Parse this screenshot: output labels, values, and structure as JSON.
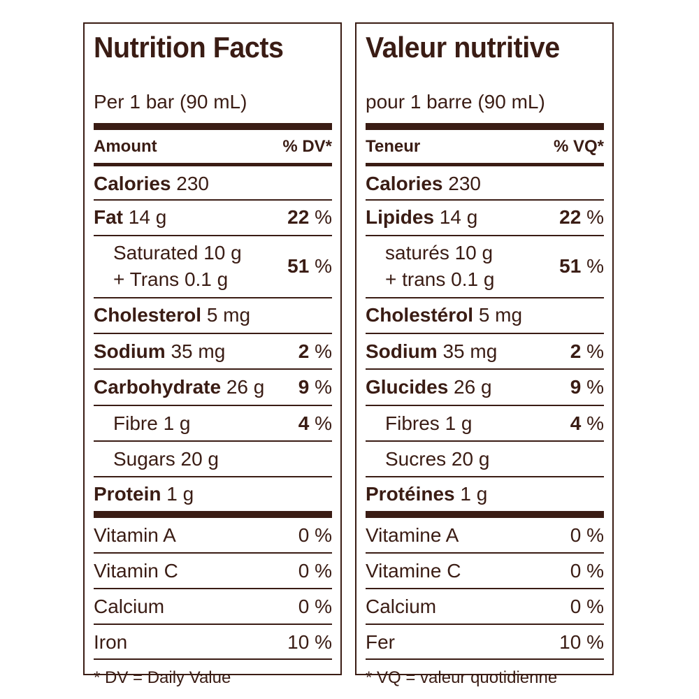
{
  "en": {
    "title": "Nutrition Facts",
    "serving": "Per 1 bar (90 mL)",
    "amount_header": "Amount",
    "dv_header": "% DV*",
    "calories_label": "Calories",
    "calories_value": "230",
    "fat_label": "Fat",
    "fat_amount": "14 g",
    "fat_dv": "22",
    "sat_line": "Saturated 10 g",
    "trans_line": "+ Trans 0.1 g",
    "sat_dv": "51",
    "chol_label": "Cholesterol",
    "chol_amount": "5 mg",
    "sodium_label": "Sodium",
    "sodium_amount": "35 mg",
    "sodium_dv": "2",
    "carb_label": "Carbohydrate",
    "carb_amount": "26 g",
    "carb_dv": "9",
    "fibre_label": "Fibre 1 g",
    "fibre_dv": "4",
    "sugars_label": "Sugars 20 g",
    "protein_label": "Protein",
    "protein_amount": "1 g",
    "vita_label": "Vitamin A",
    "vita_value": "0 %",
    "vitc_label": "Vitamin C",
    "vitc_value": "0 %",
    "calcium_label": "Calcium",
    "calcium_value": "0 %",
    "iron_label": "Iron",
    "iron_value": "10 %",
    "footnote": "* DV = Daily Value"
  },
  "fr": {
    "title": "Valeur nutritive",
    "serving": "pour 1 barre (90 mL)",
    "amount_header": "Teneur",
    "dv_header": "% VQ*",
    "calories_label": "Calories",
    "calories_value": "230",
    "fat_label": "Lipides",
    "fat_amount": "14 g",
    "fat_dv": "22",
    "sat_line": "saturés 10 g",
    "trans_line": "+ trans 0.1 g",
    "sat_dv": "51",
    "chol_label": "Cholestérol",
    "chol_amount": "5 mg",
    "sodium_label": "Sodium",
    "sodium_amount": "35 mg",
    "sodium_dv": "2",
    "carb_label": "Glucides",
    "carb_amount": "26 g",
    "carb_dv": "9",
    "fibre_label": "Fibres 1 g",
    "fibre_dv": "4",
    "sugars_label": "Sucres 20 g",
    "protein_label": "Protéines",
    "protein_amount": "1 g",
    "vita_label": "Vitamine A",
    "vita_value": "0 %",
    "vitc_label": "Vitamine C",
    "vitc_value": "0 %",
    "calcium_label": "Calcium",
    "calcium_value": "0 %",
    "iron_label": "Fer",
    "iron_value": "10 %",
    "footnote": "* VQ = valeur quotidienne"
  },
  "percent_sign": "%",
  "colors": {
    "ink": "#3a1c14",
    "background": "#ffffff"
  }
}
